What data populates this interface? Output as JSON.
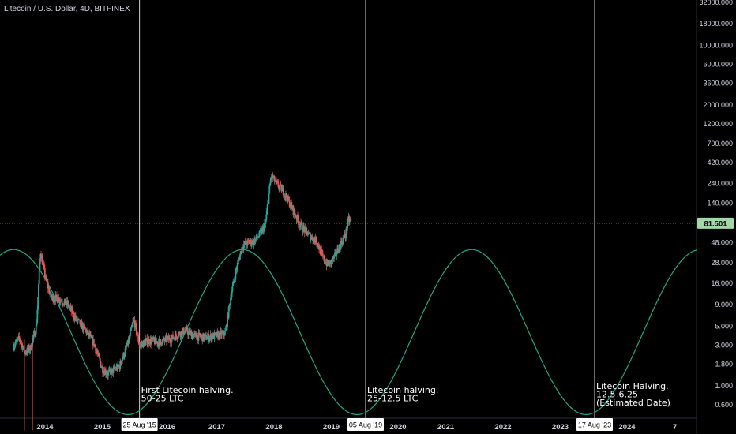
{
  "title": "Litecoin / U.S. Dollar, 4D, BITFINEX",
  "last_price": "81.501",
  "colors": {
    "up": "#26a69a",
    "down": "#ef5350",
    "sine": "#1aa88a",
    "price_badge": "#a5d6a7",
    "grid_line": "#cfcfcf"
  },
  "chart_data": {
    "type": "candlestick",
    "title": "Litecoin / U.S. Dollar, 4D, BITFINEX",
    "y_scale": "log",
    "y_ticks": [
      "32000.000",
      "18000.000",
      "10000.000",
      "6000.000",
      "3600.000",
      "2000.000",
      "1200.000",
      "700.000",
      "420.000",
      "240.000",
      "140.000",
      "81.501",
      "48.000",
      "28.000",
      "16.000",
      "9.000",
      "5.000",
      "3.000",
      "1.800",
      "1.000",
      "0.600"
    ],
    "x_ticks": [
      "2014",
      "2015",
      "2016",
      "2017",
      "2018",
      "2019",
      "2020",
      "2021",
      "2022",
      "2023",
      "2024",
      "7"
    ],
    "x_highlights": [
      "25 Aug '15",
      "05 Aug '19",
      "17 Aug '23"
    ],
    "price_path": [
      [
        2013.45,
        3.0
      ],
      [
        2013.55,
        3.6
      ],
      [
        2013.65,
        2.5
      ],
      [
        2013.75,
        2.8
      ],
      [
        2013.85,
        5.0
      ],
      [
        2013.92,
        38
      ],
      [
        2014.0,
        20
      ],
      [
        2014.1,
        11
      ],
      [
        2014.25,
        10.5
      ],
      [
        2014.4,
        9
      ],
      [
        2014.55,
        6
      ],
      [
        2014.7,
        4.6
      ],
      [
        2014.85,
        3.2
      ],
      [
        2015.0,
        1.6
      ],
      [
        2015.1,
        1.4
      ],
      [
        2015.3,
        1.7
      ],
      [
        2015.45,
        3.2
      ],
      [
        2015.55,
        6
      ],
      [
        2015.65,
        3.0
      ],
      [
        2015.8,
        3.4
      ],
      [
        2016.0,
        3.3
      ],
      [
        2016.2,
        3.6
      ],
      [
        2016.45,
        4.5
      ],
      [
        2016.6,
        3.9
      ],
      [
        2016.8,
        3.7
      ],
      [
        2017.0,
        3.9
      ],
      [
        2017.15,
        4.2
      ],
      [
        2017.25,
        12
      ],
      [
        2017.35,
        25
      ],
      [
        2017.45,
        45
      ],
      [
        2017.55,
        48
      ],
      [
        2017.65,
        50
      ],
      [
        2017.75,
        60
      ],
      [
        2017.85,
        80
      ],
      [
        2017.95,
        300
      ],
      [
        2018.05,
        230
      ],
      [
        2018.15,
        200
      ],
      [
        2018.3,
        130
      ],
      [
        2018.45,
        80
      ],
      [
        2018.6,
        60
      ],
      [
        2018.75,
        50
      ],
      [
        2018.85,
        32
      ],
      [
        2018.95,
        26
      ],
      [
        2019.05,
        32
      ],
      [
        2019.15,
        45
      ],
      [
        2019.25,
        60
      ],
      [
        2019.3,
        90
      ],
      [
        2019.35,
        85
      ]
    ],
    "halving_cycle": {
      "period_years": 4,
      "min_years": [
        2015.45,
        2019.45,
        2023.45
      ],
      "max_years": [
        2017.45,
        2021.45,
        2025.45
      ],
      "max_price": 40,
      "min_price": 0.46
    },
    "annotations": [
      {
        "date": "25 Aug '15",
        "text": [
          "First Litecoin halving.",
          "50-25 LTC"
        ]
      },
      {
        "date": "05 Aug '19",
        "text": [
          "Litecoin halving.",
          "25-12.5 LTC"
        ]
      },
      {
        "date": "17 Aug '23",
        "text": [
          "Litecoin Halving.",
          "12.5-6.25",
          "(Estimated Date)"
        ]
      }
    ]
  }
}
